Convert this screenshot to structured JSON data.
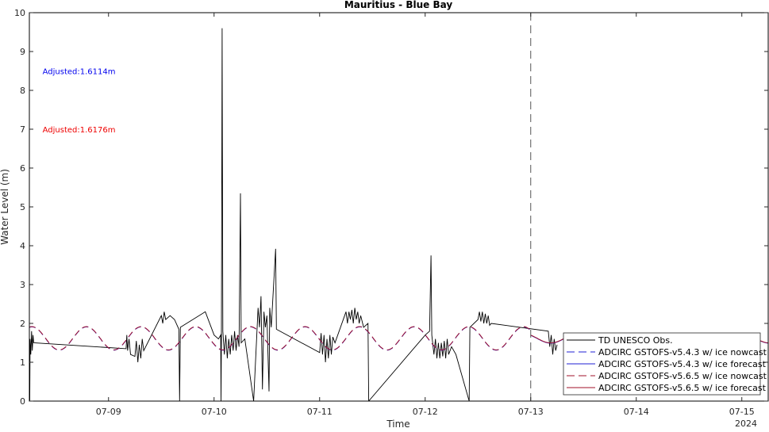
{
  "chart_data": {
    "type": "line",
    "title": "Mauritius - Blue Bay",
    "xlabel": "Time",
    "ylabel": "Water Level (m)",
    "xlim": [
      "2024-07-08 06:00",
      "2024-07-15 06:00"
    ],
    "ylim": [
      0,
      10
    ],
    "yticks": [
      0,
      1,
      2,
      3,
      4,
      5,
      6,
      7,
      8,
      9,
      10
    ],
    "xticks": [
      {
        "t": "2024-07-09 00:00",
        "label": "07-09"
      },
      {
        "t": "2024-07-10 00:00",
        "label": "07-10"
      },
      {
        "t": "2024-07-11 00:00",
        "label": "07-11"
      },
      {
        "t": "2024-07-12 00:00",
        "label": "07-12"
      },
      {
        "t": "2024-07-13 00:00",
        "label": "07-13"
      },
      {
        "t": "2024-07-14 00:00",
        "label": "07-14"
      },
      {
        "t": "2024-07-15 00:00",
        "label": "07-15"
      }
    ],
    "year_label": "2024",
    "grid": false,
    "nowcast_divider": "2024-07-13 00:00",
    "annotations": [
      {
        "text": "Adjusted:1.6114m",
        "color": "#0000ee",
        "x": "2024-07-08 09:00",
        "y": 8.5
      },
      {
        "text": "Adjusted:1.6176m",
        "color": "#ee0000",
        "x": "2024-07-08 09:00",
        "y": 7.0
      }
    ],
    "legend": {
      "placement": "bottom-right",
      "entries": [
        {
          "label": "TD UNESCO Obs.",
          "color": "#000000",
          "style": "solid"
        },
        {
          "label": "ADCIRC GSTOFS-v5.4.3 w/ ice nowcast",
          "color": "#1f1fd6",
          "style": "dashed"
        },
        {
          "label": "ADCIRC GSTOFS-v5.4.3 w/ ice forecast",
          "color": "#1f1fd6",
          "style": "solid"
        },
        {
          "label": "ADCIRC GSTOFS-v5.6.5 w/ ice nowcast",
          "color": "#a0102a",
          "style": "dashed"
        },
        {
          "label": "ADCIRC GSTOFS-v5.6.5 w/ ice forecast",
          "color": "#a0102a",
          "style": "solid"
        }
      ]
    },
    "series": [
      {
        "name": "TD UNESCO Obs.",
        "color": "#000000",
        "points": [
          [
            "2024-07-08 06:00",
            1.1
          ],
          [
            "2024-07-08 06:05",
            0.0
          ],
          [
            "2024-07-08 06:10",
            1.6
          ],
          [
            "2024-07-08 06:20",
            1.2
          ],
          [
            "2024-07-08 06:30",
            1.8
          ],
          [
            "2024-07-08 06:40",
            1.3
          ],
          [
            "2024-07-08 06:50",
            1.7
          ],
          [
            "2024-07-08 07:00",
            1.5
          ],
          [
            "2024-07-09 04:00",
            1.35
          ],
          [
            "2024-07-09 04:10",
            1.7
          ],
          [
            "2024-07-09 04:20",
            1.3
          ],
          [
            "2024-07-09 04:40",
            1.6
          ],
          [
            "2024-07-09 05:00",
            1.2
          ],
          [
            "2024-07-09 06:00",
            1.15
          ],
          [
            "2024-07-09 06:20",
            1.55
          ],
          [
            "2024-07-09 06:40",
            1.0
          ],
          [
            "2024-07-09 07:00",
            1.45
          ],
          [
            "2024-07-09 07:20",
            1.1
          ],
          [
            "2024-07-09 07:40",
            1.6
          ],
          [
            "2024-07-09 08:00",
            1.3
          ],
          [
            "2024-07-09 12:00",
            2.2
          ],
          [
            "2024-07-09 12:20",
            2.0
          ],
          [
            "2024-07-09 12:40",
            2.3
          ],
          [
            "2024-07-09 13:00",
            2.1
          ],
          [
            "2024-07-09 14:00",
            2.2
          ],
          [
            "2024-07-09 15:00",
            2.1
          ],
          [
            "2024-07-09 16:00",
            1.85
          ],
          [
            "2024-07-09 16:10",
            0.0
          ],
          [
            "2024-07-09 16:20",
            1.9
          ],
          [
            "2024-07-09 22:00",
            2.3
          ],
          [
            "2024-07-10 00:00",
            1.7
          ],
          [
            "2024-07-10 01:00",
            1.6
          ],
          [
            "2024-07-10 01:30",
            1.7
          ],
          [
            "2024-07-10 01:35",
            0.0
          ],
          [
            "2024-07-10 01:40",
            1.6
          ],
          [
            "2024-07-10 01:50",
            9.6
          ],
          [
            "2024-07-10 02:00",
            1.8
          ],
          [
            "2024-07-10 02:20",
            1.2
          ],
          [
            "2024-07-10 02:40",
            1.7
          ],
          [
            "2024-07-10 03:00",
            1.1
          ],
          [
            "2024-07-10 03:20",
            1.6
          ],
          [
            "2024-07-10 03:40",
            1.2
          ],
          [
            "2024-07-10 04:00",
            1.7
          ],
          [
            "2024-07-10 04:20",
            1.3
          ],
          [
            "2024-07-10 04:40",
            1.8
          ],
          [
            "2024-07-10 05:00",
            1.3
          ],
          [
            "2024-07-10 05:20",
            1.7
          ],
          [
            "2024-07-10 05:40",
            1.4
          ],
          [
            "2024-07-10 06:00",
            5.35
          ],
          [
            "2024-07-10 06:10",
            1.5
          ],
          [
            "2024-07-10 07:00",
            1.6
          ],
          [
            "2024-07-10 09:00",
            0.0
          ],
          [
            "2024-07-10 10:00",
            2.4
          ],
          [
            "2024-07-10 10:20",
            1.9
          ],
          [
            "2024-07-10 10:40",
            2.7
          ],
          [
            "2024-07-10 11:00",
            0.3
          ],
          [
            "2024-07-10 11:20",
            2.3
          ],
          [
            "2024-07-10 11:40",
            1.9
          ],
          [
            "2024-07-10 12:00",
            2.2
          ],
          [
            "2024-07-10 12:30",
            0.25
          ],
          [
            "2024-07-10 12:40",
            2.4
          ],
          [
            "2024-07-10 13:00",
            1.9
          ],
          [
            "2024-07-10 14:00",
            3.92
          ],
          [
            "2024-07-10 14:10",
            1.85
          ],
          [
            "2024-07-11 00:00",
            1.25
          ],
          [
            "2024-07-11 00:20",
            1.75
          ],
          [
            "2024-07-11 00:40",
            1.2
          ],
          [
            "2024-07-11 01:00",
            1.7
          ],
          [
            "2024-07-11 01:20",
            1.0
          ],
          [
            "2024-07-11 01:40",
            1.6
          ],
          [
            "2024-07-11 02:00",
            1.1
          ],
          [
            "2024-07-11 02:20",
            1.7
          ],
          [
            "2024-07-11 02:40",
            1.2
          ],
          [
            "2024-07-11 03:00",
            1.65
          ],
          [
            "2024-07-11 03:30",
            1.5
          ],
          [
            "2024-07-11 06:00",
            2.3
          ],
          [
            "2024-07-11 06:20",
            2.0
          ],
          [
            "2024-07-11 06:40",
            2.3
          ],
          [
            "2024-07-11 07:00",
            2.1
          ],
          [
            "2024-07-11 07:20",
            2.35
          ],
          [
            "2024-07-11 07:40",
            2.0
          ],
          [
            "2024-07-11 08:00",
            2.4
          ],
          [
            "2024-07-11 08:20",
            2.1
          ],
          [
            "2024-07-11 08:40",
            2.3
          ],
          [
            "2024-07-11 09:00",
            2.0
          ],
          [
            "2024-07-11 09:20",
            2.2
          ],
          [
            "2024-07-11 10:00",
            1.9
          ],
          [
            "2024-07-11 11:00",
            2.0
          ],
          [
            "2024-07-11 11:10",
            0.0
          ],
          [
            "2024-07-12 00:00",
            1.7
          ],
          [
            "2024-07-12 01:00",
            1.8
          ],
          [
            "2024-07-12 01:20",
            3.75
          ],
          [
            "2024-07-12 01:30",
            1.7
          ],
          [
            "2024-07-12 02:00",
            1.2
          ],
          [
            "2024-07-12 02:20",
            1.6
          ],
          [
            "2024-07-12 02:40",
            1.1
          ],
          [
            "2024-07-12 03:00",
            1.5
          ],
          [
            "2024-07-12 03:20",
            1.1
          ],
          [
            "2024-07-12 03:40",
            1.5
          ],
          [
            "2024-07-12 04:00",
            1.15
          ],
          [
            "2024-07-12 04:20",
            1.55
          ],
          [
            "2024-07-12 04:40",
            1.1
          ],
          [
            "2024-07-12 05:00",
            1.6
          ],
          [
            "2024-07-12 05:20",
            1.2
          ],
          [
            "2024-07-12 06:00",
            1.4
          ],
          [
            "2024-07-12 07:00",
            1.2
          ],
          [
            "2024-07-12 10:00",
            0.0
          ],
          [
            "2024-07-12 10:10",
            1.9
          ],
          [
            "2024-07-12 12:00",
            2.1
          ],
          [
            "2024-07-12 12:20",
            2.3
          ],
          [
            "2024-07-12 12:40",
            2.05
          ],
          [
            "2024-07-12 13:00",
            2.3
          ],
          [
            "2024-07-12 13:20",
            2.0
          ],
          [
            "2024-07-12 13:40",
            2.25
          ],
          [
            "2024-07-12 14:00",
            2.0
          ],
          [
            "2024-07-12 14:20",
            2.2
          ],
          [
            "2024-07-12 14:40",
            1.95
          ],
          [
            "2024-07-12 15:00",
            2.0
          ],
          [
            "2024-07-13 04:00",
            1.8
          ],
          [
            "2024-07-13 04:20",
            1.4
          ],
          [
            "2024-07-13 04:40",
            1.7
          ],
          [
            "2024-07-13 05:00",
            1.2
          ],
          [
            "2024-07-13 05:20",
            1.6
          ],
          [
            "2024-07-13 05:40",
            1.3
          ],
          [
            "2024-07-13 06:00",
            1.45
          ]
        ]
      },
      {
        "name": "ADCIRC GSTOFS-v5.4.3 w/ ice nowcast",
        "color": "#1f1fd6",
        "style": "dashed",
        "model": {
          "mean": 1.6114,
          "amplitude": 0.3,
          "period_hours": 12.42,
          "peak": "2024-07-08 19:00"
        },
        "range": [
          "2024-07-08 06:00",
          "2024-07-13 00:00"
        ]
      },
      {
        "name": "ADCIRC GSTOFS-v5.4.3 w/ ice forecast",
        "color": "#1f1fd6",
        "style": "solid",
        "model": {
          "mean": 1.6114,
          "amplitude": 0.12,
          "period_hours": 12.42,
          "peak": "2024-07-08 19:00"
        },
        "range": [
          "2024-07-13 00:00",
          "2024-07-15 06:00"
        ]
      },
      {
        "name": "ADCIRC GSTOFS-v5.6.5 w/ ice nowcast",
        "color": "#a0102a",
        "style": "dashed",
        "model": {
          "mean": 1.6176,
          "amplitude": 0.3,
          "period_hours": 12.42,
          "peak": "2024-07-08 19:00"
        },
        "range": [
          "2024-07-08 06:00",
          "2024-07-13 00:00"
        ]
      },
      {
        "name": "ADCIRC GSTOFS-v5.6.5 w/ ice forecast",
        "color": "#a0102a",
        "style": "solid",
        "model": {
          "mean": 1.6176,
          "amplitude": 0.12,
          "period_hours": 12.42,
          "peak": "2024-07-08 19:00"
        },
        "range": [
          "2024-07-13 00:00",
          "2024-07-15 06:00"
        ]
      }
    ]
  }
}
